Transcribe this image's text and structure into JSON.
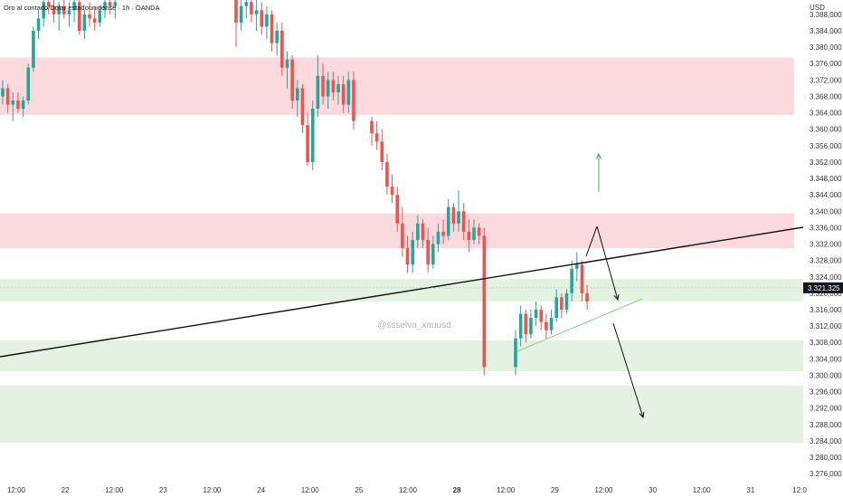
{
  "chart_data": {
    "type": "candlestick",
    "title": "Oro al contado/Dólar estadounidense · 1h · OANDA",
    "currency": "USD",
    "watermark": "@ssselva_xauusd",
    "last_price": 3321.325,
    "last_price_label": "3.321,325",
    "ylim": [
      3274.5,
      3391.5
    ],
    "y_ticks": [
      3388,
      3384,
      3380,
      3376,
      3372,
      3368,
      3364,
      3360,
      3356,
      3352,
      3348,
      3344,
      3340,
      3336,
      3332,
      3328,
      3324,
      3320,
      3316,
      3312,
      3308,
      3304,
      3300,
      3296,
      3292,
      3288,
      3284,
      3280,
      3276
    ],
    "y_tick_labels": [
      "3.388,000",
      "3.384,000",
      "3.380,000",
      "3.376,000",
      "3.372,000",
      "3.368,000",
      "3.364,000",
      "3.360,000",
      "3.356,000",
      "3.352,000",
      "3.348,000",
      "3.344,000",
      "3.340,000",
      "3.336,000",
      "3.332,000",
      "3.328,000",
      "3.324,000",
      "3.320,000",
      "3.316,000",
      "3.312,000",
      "3.308,000",
      "3.304,000",
      "3.300,000",
      "3.296,000",
      "3.292,000",
      "3.288,000",
      "3.284,000",
      "3.280,000",
      "3.276,000"
    ],
    "x_ticks": [
      {
        "label": "12:00",
        "bold": false
      },
      {
        "label": "22",
        "bold": false
      },
      {
        "label": "12:00",
        "bold": false
      },
      {
        "label": "23",
        "bold": false
      },
      {
        "label": "12:00",
        "bold": false
      },
      {
        "label": "24",
        "bold": false
      },
      {
        "label": "12:00",
        "bold": false
      },
      {
        "label": "25",
        "bold": false
      },
      {
        "label": "12:00",
        "bold": false
      },
      {
        "label": "28",
        "bold": true
      },
      {
        "label": "12:00",
        "bold": false
      },
      {
        "label": "29",
        "bold": false
      },
      {
        "label": "12:00",
        "bold": false
      },
      {
        "label": "30",
        "bold": false
      },
      {
        "label": "12:00",
        "bold": false
      },
      {
        "label": "31",
        "bold": false
      },
      {
        "label": "12:0",
        "bold": false
      }
    ],
    "resistance_zones": [
      [
        3363.5,
        3377.5
      ],
      [
        3331,
        3339.5
      ]
    ],
    "support_zones": [
      [
        3318,
        3323.5
      ],
      [
        3301,
        3308.5
      ],
      [
        3283.5,
        3297.5
      ]
    ],
    "candles": [
      [
        3368,
        3372,
        3366,
        3370
      ],
      [
        3370,
        3371,
        3364,
        3366
      ],
      [
        3366,
        3369,
        3362,
        3367
      ],
      [
        3367,
        3369,
        3364,
        3365
      ],
      [
        3365,
        3368,
        3363,
        3367
      ],
      [
        3367,
        3376,
        3366,
        3375
      ],
      [
        3375,
        3385,
        3374,
        3384
      ],
      [
        3384,
        3389,
        3382,
        3387
      ],
      [
        3387,
        3392,
        3385,
        3391
      ],
      [
        3391,
        3392,
        3388,
        3390
      ],
      [
        3390,
        3392,
        3386,
        3388
      ],
      [
        3388,
        3391,
        3384,
        3390
      ],
      [
        3390,
        3392,
        3387,
        3388
      ],
      [
        3388,
        3391,
        3385,
        3389
      ],
      [
        3389,
        3392,
        3386,
        3391
      ],
      [
        3391,
        3392,
        3383,
        3384
      ],
      [
        3384,
        3389,
        3382,
        3388
      ],
      [
        3388,
        3391,
        3385,
        3387
      ],
      [
        3387,
        3390,
        3384,
        3386
      ],
      [
        3386,
        3390,
        3385,
        3389
      ],
      [
        3389,
        3392,
        3387,
        3391
      ],
      [
        3391,
        3392,
        3388,
        3390
      ],
      [
        3390,
        3392,
        3387,
        3391
      ],
      [
        3392,
        3392,
        3380,
        3386
      ],
      [
        3386,
        3392,
        3384,
        3390
      ],
      [
        3390,
        3392,
        3387,
        3391
      ],
      [
        3391,
        3392,
        3386,
        3388
      ],
      [
        3388,
        3392,
        3384,
        3389
      ],
      [
        3389,
        3391,
        3383,
        3385
      ],
      [
        3385,
        3390,
        3382,
        3388
      ],
      [
        3388,
        3389,
        3379,
        3381
      ],
      [
        3381,
        3386,
        3378,
        3384
      ],
      [
        3384,
        3386,
        3373,
        3375
      ],
      [
        3375,
        3379,
        3370,
        3377
      ],
      [
        3377,
        3378,
        3365,
        3367
      ],
      [
        3367,
        3372,
        3363,
        3370
      ],
      [
        3370,
        3371,
        3359,
        3361
      ],
      [
        3361,
        3364,
        3351,
        3352
      ],
      [
        3352,
        3367,
        3350,
        3365
      ],
      [
        3365,
        3378,
        3363,
        3373
      ],
      [
        3373,
        3376,
        3366,
        3368
      ],
      [
        3368,
        3374,
        3365,
        3372
      ],
      [
        3372,
        3374,
        3367,
        3369
      ],
      [
        3369,
        3373,
        3366,
        3371
      ],
      [
        3371,
        3373,
        3364,
        3366
      ],
      [
        3366,
        3374,
        3364,
        3372
      ],
      [
        3372,
        3374,
        3360,
        3362
      ],
      [
        3362,
        3363,
        3356,
        3359
      ],
      [
        3359,
        3362,
        3355,
        3357
      ],
      [
        3357,
        3360,
        3350,
        3352
      ],
      [
        3352,
        3354,
        3344,
        3346
      ],
      [
        3346,
        3349,
        3342,
        3344
      ],
      [
        3344,
        3346,
        3335,
        3337
      ],
      [
        3337,
        3341,
        3329,
        3331
      ],
      [
        3331,
        3334,
        3325,
        3327
      ],
      [
        3327,
        3335,
        3325,
        3333
      ],
      [
        3333,
        3339,
        3331,
        3337
      ],
      [
        3337,
        3338,
        3331,
        3333
      ],
      [
        3333,
        3336,
        3325,
        3327
      ],
      [
        3327,
        3334,
        3326,
        3332
      ],
      [
        3332,
        3337,
        3330,
        3335
      ],
      [
        3335,
        3338,
        3332,
        3334
      ],
      [
        3334,
        3343,
        3333,
        3341
      ],
      [
        3341,
        3342,
        3335,
        3337
      ],
      [
        3337,
        3345,
        3335,
        3340
      ],
      [
        3340,
        3342,
        3333,
        3335
      ],
      [
        3335,
        3338,
        3330,
        3333
      ],
      [
        3333,
        3338,
        3332,
        3336
      ],
      [
        3336,
        3337,
        3332,
        3334
      ],
      [
        3334,
        3336,
        3300,
        3302
      ],
      [
        3302,
        3311,
        3300,
        3309
      ],
      [
        3309,
        3317,
        3307,
        3315
      ],
      [
        3315,
        3316,
        3308,
        3310
      ],
      [
        3310,
        3316,
        3309,
        3314
      ],
      [
        3314,
        3318,
        3312,
        3316
      ],
      [
        3316,
        3317,
        3311,
        3313
      ],
      [
        3313,
        3315,
        3309,
        3311
      ],
      [
        3311,
        3316,
        3310,
        3314
      ],
      [
        3314,
        3321,
        3313,
        3319
      ],
      [
        3319,
        3320,
        3314,
        3316
      ],
      [
        3316,
        3321,
        3315,
        3320
      ],
      [
        3320,
        3328,
        3318,
        3326
      ],
      [
        3326,
        3330,
        3323,
        3327
      ],
      [
        3327,
        3328,
        3318,
        3320
      ],
      [
        3320,
        3322,
        3316,
        3318
      ]
    ]
  }
}
